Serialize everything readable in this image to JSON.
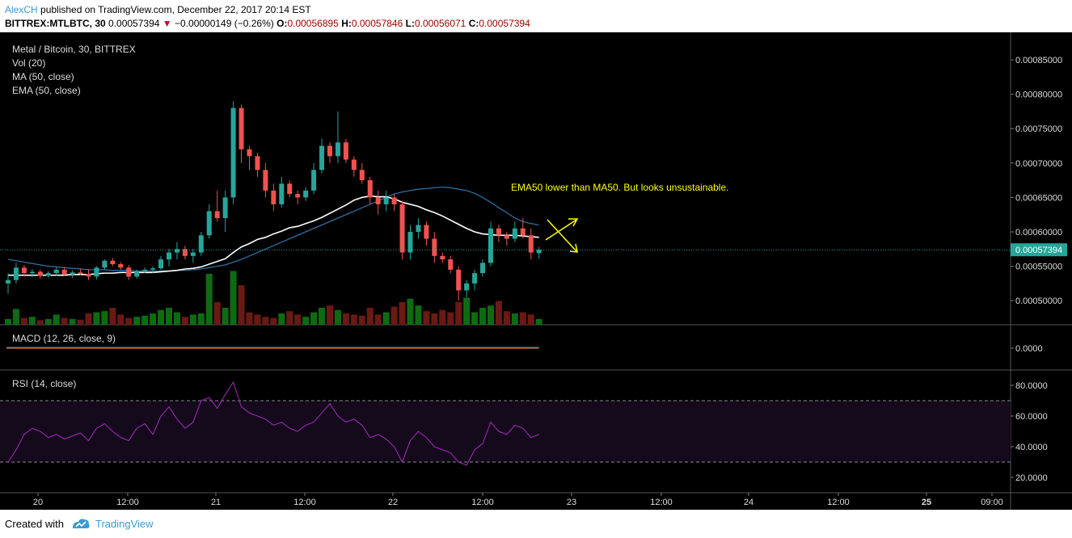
{
  "header": {
    "author": "AlexCH",
    "published": "published on TradingView.com, December 22, 2017 20:14 EST",
    "symbol": "BITTREX:MTLBTC, 30",
    "last": "0.00057394",
    "change_arrow": "▼",
    "change": "−0.00000149 (−0.26%)",
    "o_label": "O:",
    "o_val": "0.00056895",
    "h_label": "H:",
    "h_val": "0.00057846",
    "l_label": "L:",
    "l_val": "0.00056071",
    "c_label": "C:",
    "c_val": "0.00057394"
  },
  "legend": {
    "title": "Metal / Bitcoin, 30, BITTREX",
    "vol": "Vol (20)",
    "ma": "MA (50, close)",
    "ema": "EMA (50, close)",
    "macd": "MACD (12, 26, close, 9)",
    "rsi": "RSI (14, close)"
  },
  "annotation": "EMA50 lower than MA50. But looks unsustainable.",
  "price_axis": [
    "0.00085000",
    "0.00080000",
    "0.00075000",
    "0.00070000",
    "0.00065000",
    "0.00060000",
    "0.00055000",
    "0.00050000"
  ],
  "last_price_label": "0.00057394",
  "macd_axis": [
    "0.0000"
  ],
  "rsi_axis": [
    "80.0000",
    "60.0000",
    "40.0000",
    "20.0000"
  ],
  "time_axis": [
    "20",
    "12:00",
    "21",
    "12:00",
    "22",
    "12:00",
    "23",
    "12:00",
    "24",
    "12:00",
    "25",
    "09:00"
  ],
  "footer": {
    "created": "Created with",
    "brand": "TradingView"
  },
  "colors": {
    "up": "#26a69a",
    "down": "#ef5350",
    "ma": "#2e6fa0",
    "ema": "#ffffff",
    "rsi": "#9c27b0",
    "annotation": "#ffff00",
    "last_price": "#26a69a"
  },
  "chart_data": {
    "type": "candlestick",
    "title": "Metal / Bitcoin, 30, BITTREX",
    "ylim": [
      0.000465,
      0.00089
    ],
    "candles": [
      [
        0.000525,
        0.00054,
        0.00051,
        0.00053
      ],
      [
        0.00053,
        0.000555,
        0.000525,
        0.000548
      ],
      [
        0.000548,
        0.000552,
        0.000535,
        0.00054
      ],
      [
        0.00054,
        0.000546,
        0.000534,
        0.000542
      ],
      [
        0.000542,
        0.000545,
        0.000532,
        0.000536
      ],
      [
        0.000536,
        0.000543,
        0.000533,
        0.00054
      ],
      [
        0.00054,
        0.000548,
        0.000536,
        0.000545
      ],
      [
        0.000545,
        0.000549,
        0.000536,
        0.000538
      ],
      [
        0.000538,
        0.000544,
        0.000533,
        0.000541
      ],
      [
        0.000541,
        0.000547,
        0.000537,
        0.000539
      ],
      [
        0.000539,
        0.000545,
        0.00053,
        0.000535
      ],
      [
        0.000535,
        0.00055,
        0.000531,
        0.000548
      ],
      [
        0.000548,
        0.00056,
        0.000545,
        0.000558
      ],
      [
        0.000558,
        0.000562,
        0.00055,
        0.000553
      ],
      [
        0.000553,
        0.000556,
        0.000545,
        0.000548
      ],
      [
        0.000548,
        0.000552,
        0.00053,
        0.000535
      ],
      [
        0.000535,
        0.000545,
        0.000532,
        0.000543
      ],
      [
        0.000543,
        0.000548,
        0.00054,
        0.000545
      ],
      [
        0.000545,
        0.00055,
        0.00054,
        0.000547
      ],
      [
        0.000547,
        0.000565,
        0.000545,
        0.00056
      ],
      [
        0.00056,
        0.000575,
        0.00055,
        0.00057
      ],
      [
        0.00057,
        0.000585,
        0.00056,
        0.000575
      ],
      [
        0.000575,
        0.00058,
        0.00056,
        0.000565
      ],
      [
        0.000565,
        0.000575,
        0.000555,
        0.00057
      ],
      [
        0.00057,
        0.0006,
        0.000565,
        0.000595
      ],
      [
        0.000595,
        0.00064,
        0.00059,
        0.00063
      ],
      [
        0.00063,
        0.00066,
        0.000615,
        0.00062
      ],
      [
        0.00062,
        0.00066,
        0.0006,
        0.00065
      ],
      [
        0.00065,
        0.00079,
        0.00064,
        0.00078
      ],
      [
        0.00078,
        0.000785,
        0.0007,
        0.00072
      ],
      [
        0.00072,
        0.000725,
        0.00069,
        0.00071
      ],
      [
        0.00071,
        0.000715,
        0.00068,
        0.00069
      ],
      [
        0.00069,
        0.0007,
        0.00065,
        0.00066
      ],
      [
        0.00066,
        0.00067,
        0.00063,
        0.00064
      ],
      [
        0.00064,
        0.00068,
        0.000635,
        0.00067
      ],
      [
        0.00067,
        0.000675,
        0.00065,
        0.000655
      ],
      [
        0.000655,
        0.00066,
        0.00064,
        0.00065
      ],
      [
        0.00065,
        0.000665,
        0.000645,
        0.00066
      ],
      [
        0.00066,
        0.0007,
        0.000655,
        0.00069
      ],
      [
        0.00069,
        0.000735,
        0.000685,
        0.000725
      ],
      [
        0.000725,
        0.00073,
        0.0007,
        0.00071
      ],
      [
        0.00071,
        0.000775,
        0.0007,
        0.00073
      ],
      [
        0.00073,
        0.000735,
        0.0007,
        0.000705
      ],
      [
        0.000705,
        0.00071,
        0.00068,
        0.00069
      ],
      [
        0.00069,
        0.0007,
        0.00067,
        0.000675
      ],
      [
        0.000675,
        0.00068,
        0.00064,
        0.00065
      ],
      [
        0.00065,
        0.00066,
        0.000625,
        0.00064
      ],
      [
        0.00064,
        0.00066,
        0.00063,
        0.00065
      ],
      [
        0.00065,
        0.000655,
        0.00063,
        0.00064
      ],
      [
        0.00064,
        0.000645,
        0.00056,
        0.00057
      ],
      [
        0.00057,
        0.00061,
        0.00056,
        0.0006
      ],
      [
        0.0006,
        0.00062,
        0.00059,
        0.00061
      ],
      [
        0.00061,
        0.000615,
        0.00058,
        0.00059
      ],
      [
        0.00059,
        0.0006,
        0.000555,
        0.000565
      ],
      [
        0.000565,
        0.00057,
        0.000555,
        0.00056
      ],
      [
        0.00056,
        0.000565,
        0.00054,
        0.000545
      ],
      [
        0.000545,
        0.00055,
        0.0005,
        0.000515
      ],
      [
        0.000515,
        0.00053,
        0.000505,
        0.000525
      ],
      [
        0.000525,
        0.000545,
        0.000515,
        0.00054
      ],
      [
        0.00054,
        0.00056,
        0.000535,
        0.000555
      ],
      [
        0.000555,
        0.000615,
        0.00055,
        0.000605
      ],
      [
        0.000605,
        0.00061,
        0.000585,
        0.000595
      ],
      [
        0.000595,
        0.0006,
        0.00058,
        0.00059
      ],
      [
        0.00059,
        0.000615,
        0.000585,
        0.000605
      ],
      [
        0.000605,
        0.00062,
        0.00059,
        0.000595
      ],
      [
        0.000595,
        0.000605,
        0.00056,
        0.00057
      ],
      [
        0.000569,
        0.000578,
        0.000561,
        0.000574
      ]
    ],
    "ema50": [
      0.000537,
      0.000537,
      0.000537,
      0.000537,
      0.000537,
      0.000537,
      0.000537,
      0.000537,
      0.000538,
      0.000538,
      0.000538,
      0.000539,
      0.00054,
      0.00054,
      0.000541,
      0.000541,
      0.000541,
      0.000541,
      0.000541,
      0.000542,
      0.000543,
      0.000544,
      0.000546,
      0.000547,
      0.000549,
      0.000553,
      0.000557,
      0.000561,
      0.00057,
      0.000578,
      0.000583,
      0.000589,
      0.000592,
      0.000597,
      0.000601,
      0.000606,
      0.000608,
      0.000612,
      0.000616,
      0.000621,
      0.000627,
      0.000633,
      0.000639,
      0.000646,
      0.00065,
      0.000652,
      0.000651,
      0.000651,
      0.000648,
      0.000643,
      0.00064,
      0.000637,
      0.000632,
      0.000628,
      0.000623,
      0.000617,
      0.000611,
      0.000605,
      0.0006,
      0.000597,
      0.000596,
      0.000595,
      0.000595,
      0.000595,
      0.000594,
      0.000593,
      0.000592
    ],
    "ma50": [
      0.00056,
      0.000558,
      0.000556,
      0.000554,
      0.000552,
      0.00055,
      0.000549,
      0.000548,
      0.000547,
      0.000546,
      0.000545,
      0.000545,
      0.000545,
      0.000544,
      0.000544,
      0.000544,
      0.000543,
      0.000543,
      0.000543,
      0.000543,
      0.000543,
      0.000544,
      0.000544,
      0.000545,
      0.000546,
      0.000548,
      0.00055,
      0.000552,
      0.000556,
      0.00056,
      0.000565,
      0.00057,
      0.000575,
      0.00058,
      0.000585,
      0.00059,
      0.000595,
      0.0006,
      0.000605,
      0.00061,
      0.000615,
      0.00062,
      0.000625,
      0.00063,
      0.000635,
      0.00064,
      0.000645,
      0.00065,
      0.000655,
      0.000658,
      0.00066,
      0.000662,
      0.000663,
      0.000664,
      0.000665,
      0.000664,
      0.000662,
      0.00066,
      0.000656,
      0.00065,
      0.000643,
      0.000635,
      0.000628,
      0.00062,
      0.000615,
      0.000612,
      0.00061
    ],
    "volume": [
      0.1,
      0.28,
      0.12,
      0.14,
      0.08,
      0.1,
      0.18,
      0.12,
      0.1,
      0.09,
      0.2,
      0.22,
      0.24,
      0.3,
      0.18,
      0.12,
      0.14,
      0.16,
      0.2,
      0.26,
      0.3,
      0.22,
      0.14,
      0.18,
      0.2,
      0.9,
      0.4,
      0.3,
      0.95,
      0.7,
      0.22,
      0.18,
      0.14,
      0.12,
      0.2,
      0.24,
      0.18,
      0.14,
      0.22,
      0.3,
      0.34,
      0.26,
      0.2,
      0.18,
      0.16,
      0.3,
      0.18,
      0.22,
      0.32,
      0.4,
      0.46,
      0.34,
      0.24,
      0.2,
      0.26,
      0.22,
      0.4,
      0.48,
      0.22,
      0.3,
      0.34,
      0.42,
      0.24,
      0.2,
      0.22,
      0.18,
      0.1
    ],
    "rsi": [
      30,
      38,
      48,
      52,
      50,
      46,
      48,
      45,
      47,
      49,
      44,
      52,
      55,
      50,
      46,
      44,
      52,
      55,
      48,
      60,
      66,
      58,
      52,
      56,
      70,
      72,
      65,
      74,
      82,
      66,
      62,
      60,
      58,
      54,
      56,
      52,
      50,
      54,
      56,
      62,
      68,
      60,
      56,
      58,
      54,
      46,
      48,
      45,
      40,
      30,
      44,
      50,
      46,
      40,
      38,
      36,
      30,
      28,
      38,
      42,
      56,
      50,
      48,
      54,
      52,
      46,
      48
    ],
    "rsi_band": [
      30,
      70
    ],
    "rsi_ylim": [
      10,
      90
    ],
    "last_price": 0.00057394
  }
}
